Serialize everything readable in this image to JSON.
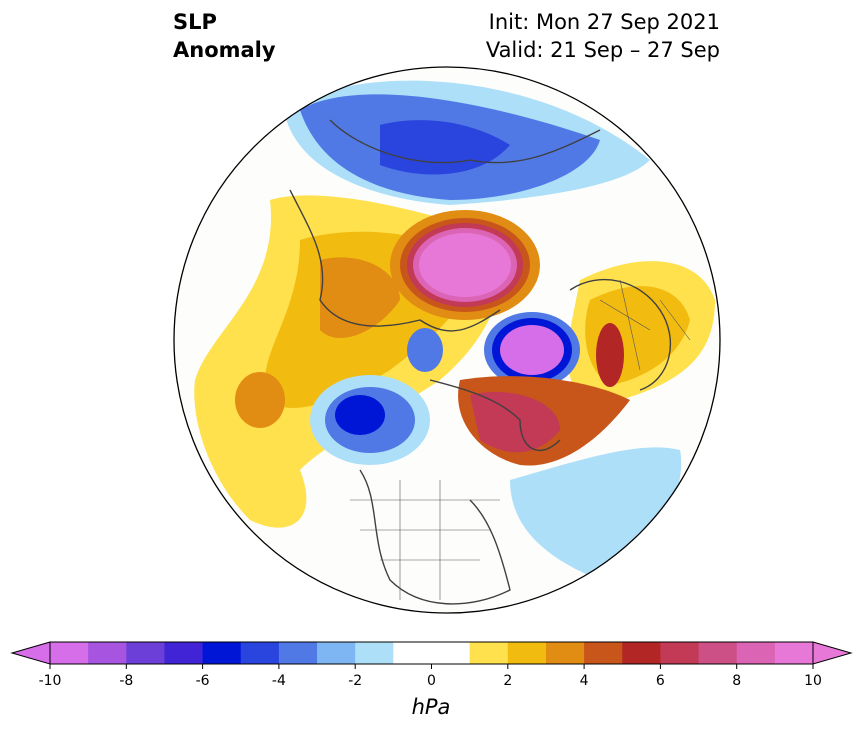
{
  "title": {
    "left_line1": "SLP",
    "left_line2": "Anomaly",
    "init": "Init: Mon 27 Sep 2021",
    "valid": "Valid: 21 Sep – 27 Sep"
  },
  "colorbar": {
    "unit": "hPa",
    "ticks": [
      "-10",
      "-8",
      "-6",
      "-4",
      "-2",
      "0",
      "2",
      "4",
      "6",
      "8",
      "10"
    ],
    "colors": [
      "#d56ee8",
      "#a755e0",
      "#6c3fd9",
      "#4024d6",
      "#0016d6",
      "#2a45dd",
      "#5079e6",
      "#7eb6f3",
      "#addff9",
      "#ffffff",
      "#ffffff",
      "#ffe04d",
      "#f2bb10",
      "#e18d14",
      "#c8561b",
      "#b32626",
      "#c23a55",
      "#cc4f86",
      "#dc64b5",
      "#e878d8"
    ],
    "under_color": "#d56ee8",
    "over_color": "#e878d8"
  },
  "map_features": [
    "sea-level-pressure-anomaly-shading",
    "coastlines",
    "country-borders"
  ]
}
